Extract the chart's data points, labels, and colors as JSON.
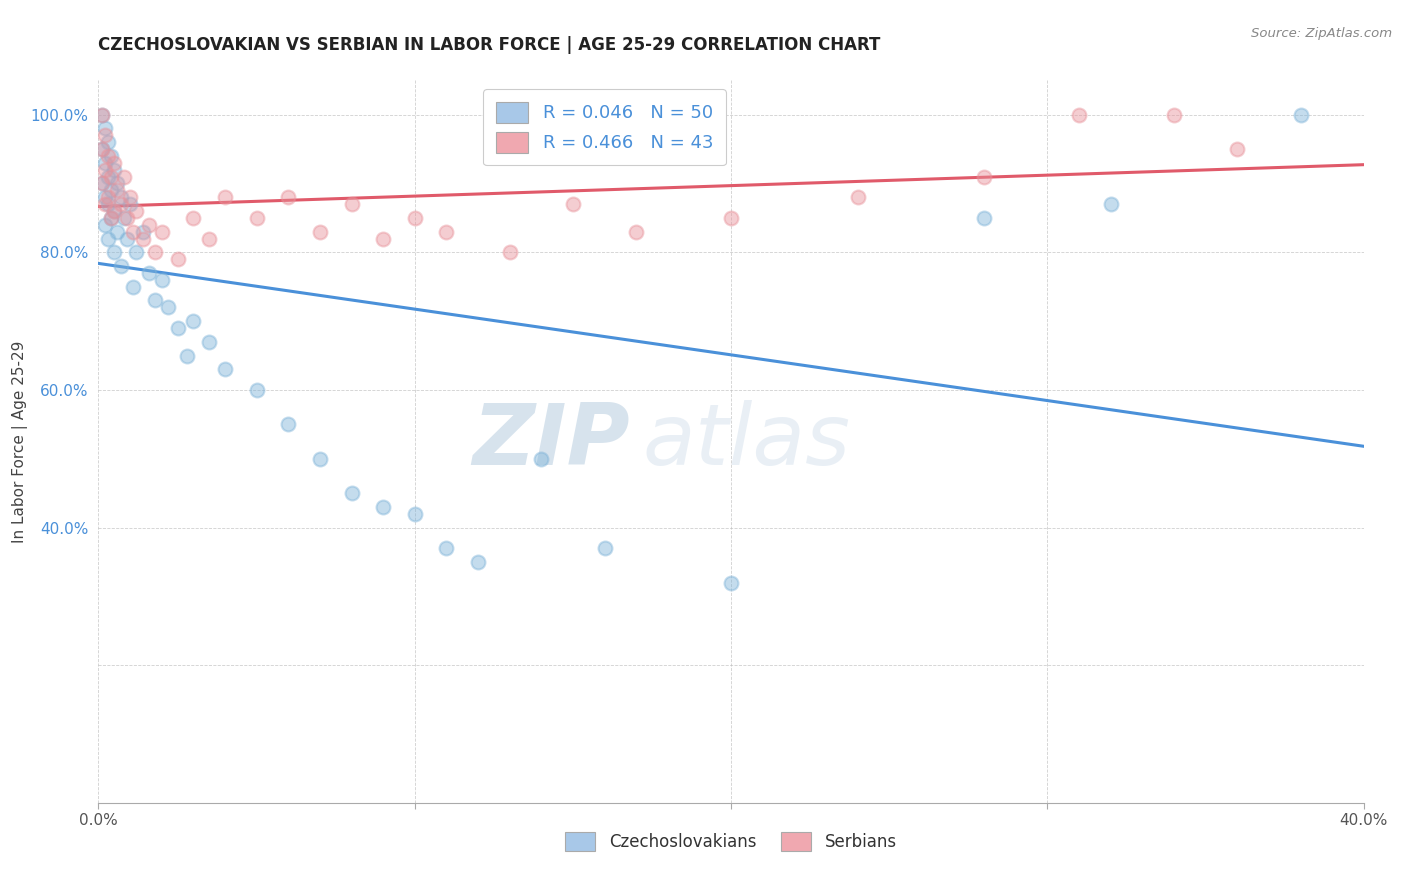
{
  "title": "CZECHOSLOVAKIAN VS SERBIAN IN LABOR FORCE | AGE 25-29 CORRELATION CHART",
  "source": "Source: ZipAtlas.com",
  "ylabel": "In Labor Force | Age 25-29",
  "xlim": [
    0.0,
    0.4
  ],
  "ylim": [
    0.0,
    1.05
  ],
  "x_ticks": [
    0.0,
    0.1,
    0.2,
    0.3,
    0.4
  ],
  "x_tick_labels": [
    "0.0%",
    "",
    "",
    "",
    "40.0%"
  ],
  "y_ticks": [
    0.2,
    0.4,
    0.6,
    0.8,
    1.0
  ],
  "y_tick_labels": [
    "",
    "40.0%",
    "60.0%",
    "80.0%",
    "100.0%"
  ],
  "blue_color": "#7eb3d8",
  "pink_color": "#e8929a",
  "blue_line_color": "#4a90d9",
  "pink_line_color": "#e05a6a",
  "legend_blue_text": "R = 0.046   N = 50",
  "legend_pink_text": "R = 0.466   N = 43",
  "legend_color_blue": "#a8c8e8",
  "legend_color_pink": "#f0a8b0",
  "blue_x": [
    0.001,
    0.001,
    0.001,
    0.002,
    0.002,
    0.002,
    0.002,
    0.003,
    0.003,
    0.003,
    0.003,
    0.004,
    0.004,
    0.004,
    0.005,
    0.005,
    0.005,
    0.006,
    0.006,
    0.007,
    0.007,
    0.008,
    0.009,
    0.01,
    0.011,
    0.012,
    0.014,
    0.016,
    0.018,
    0.02,
    0.022,
    0.025,
    0.028,
    0.03,
    0.035,
    0.04,
    0.05,
    0.06,
    0.07,
    0.08,
    0.09,
    0.1,
    0.11,
    0.12,
    0.14,
    0.16,
    0.2,
    0.28,
    0.32,
    0.38
  ],
  "blue_y": [
    1.0,
    0.95,
    0.9,
    0.98,
    0.93,
    0.88,
    0.84,
    0.96,
    0.91,
    0.87,
    0.82,
    0.94,
    0.89,
    0.85,
    0.92,
    0.86,
    0.8,
    0.9,
    0.83,
    0.88,
    0.78,
    0.85,
    0.82,
    0.87,
    0.75,
    0.8,
    0.83,
    0.77,
    0.73,
    0.76,
    0.72,
    0.69,
    0.65,
    0.7,
    0.67,
    0.63,
    0.6,
    0.55,
    0.5,
    0.45,
    0.43,
    0.42,
    0.37,
    0.35,
    0.5,
    0.37,
    0.32,
    0.85,
    0.87,
    1.0
  ],
  "pink_x": [
    0.001,
    0.001,
    0.001,
    0.002,
    0.002,
    0.002,
    0.003,
    0.003,
    0.004,
    0.004,
    0.005,
    0.005,
    0.006,
    0.007,
    0.008,
    0.009,
    0.01,
    0.011,
    0.012,
    0.014,
    0.016,
    0.018,
    0.02,
    0.025,
    0.03,
    0.035,
    0.04,
    0.05,
    0.06,
    0.07,
    0.08,
    0.09,
    0.1,
    0.11,
    0.13,
    0.15,
    0.17,
    0.2,
    0.24,
    0.28,
    0.31,
    0.34,
    0.36
  ],
  "pink_y": [
    1.0,
    0.95,
    0.9,
    0.97,
    0.92,
    0.87,
    0.94,
    0.88,
    0.91,
    0.85,
    0.93,
    0.86,
    0.89,
    0.87,
    0.91,
    0.85,
    0.88,
    0.83,
    0.86,
    0.82,
    0.84,
    0.8,
    0.83,
    0.79,
    0.85,
    0.82,
    0.88,
    0.85,
    0.88,
    0.83,
    0.87,
    0.82,
    0.85,
    0.83,
    0.8,
    0.87,
    0.83,
    0.85,
    0.88,
    0.91,
    1.0,
    1.0,
    0.95
  ],
  "dot_size": 100,
  "dot_alpha": 0.45,
  "dot_linewidth": 1.5,
  "watermark_zip": "ZIP",
  "watermark_atlas": "atlas",
  "watermark_color": "#c8d8e8",
  "watermark_alpha": 0.45
}
